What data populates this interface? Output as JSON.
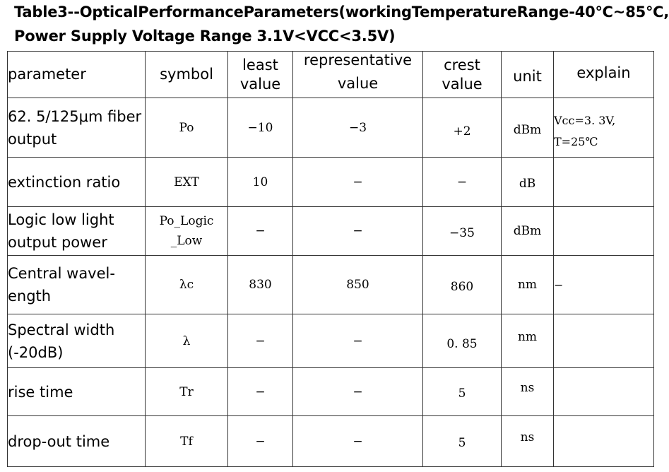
{
  "caption": {
    "line1_words": [
      "Table",
      "3--Optical",
      "Performance",
      "Parameters",
      "(working",
      "Temperature",
      "Range-40℃~85℃,"
    ],
    "line2": "Power Supply Voltage Range 3.1V<VCC<3.5V)"
  },
  "headers": {
    "parameter": "parameter",
    "symbol": "symbol",
    "least_l1": "least",
    "least_l2": "value",
    "rep_l1": "representative",
    "rep_l2": "value",
    "crest_l1": "crest",
    "crest_l2": "value",
    "unit": "unit",
    "explain": "explain"
  },
  "rows": [
    {
      "param_l1": "62. 5/125μm fiber",
      "param_l2": "output",
      "symbol": "Po",
      "least": "−10",
      "rep": "−3",
      "crest": "+2",
      "unit": "dBm",
      "explain_l1": "Vcc=3. 3V,",
      "explain_l2": "T=25℃"
    },
    {
      "param_l1": "extinction ratio",
      "symbol": "EXT",
      "least": "10",
      "rep": "−",
      "crest": "−",
      "unit": "dB",
      "explain_l1": ""
    },
    {
      "param_l1": "Logic low light",
      "param_l2": "output power",
      "symbol_l1": "Po_Logic",
      "symbol_l2": "_Low",
      "least": "−",
      "rep": "−",
      "crest": "−35",
      "unit": "dBm",
      "explain_l1": ""
    },
    {
      "param_l1": "Central wavel-",
      "param_l2": "ength",
      "symbol": "λc",
      "least": "830",
      "rep": "850",
      "crest": "860",
      "unit": "nm",
      "explain_l1": "−"
    },
    {
      "param_l1": "Spectral width",
      "param_l2": "(-20dB)",
      "symbol": "λ",
      "least": "−",
      "rep": "−",
      "crest": "0. 85",
      "unit": "nm",
      "explain_l1": ""
    },
    {
      "param_l1": "rise time",
      "symbol": "Tr",
      "least": "−",
      "rep": "−",
      "crest": "5",
      "unit": "ns",
      "explain_l1": ""
    },
    {
      "param_l1": "drop-out time",
      "symbol": "Tf",
      "least": "−",
      "rep": "−",
      "crest": "5",
      "unit": "ns",
      "explain_l1": ""
    }
  ]
}
